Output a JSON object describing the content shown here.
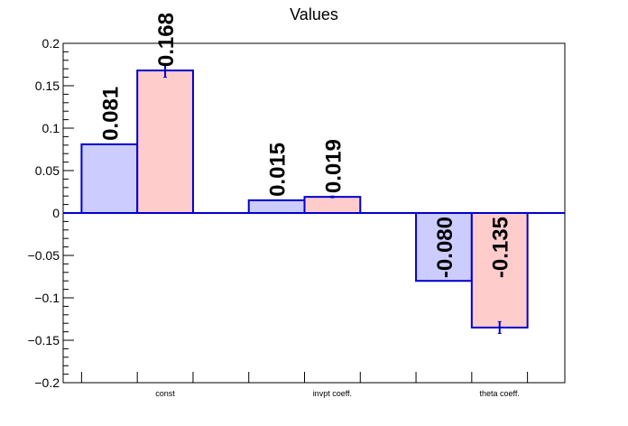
{
  "chart_data": {
    "type": "bar",
    "title": "Values",
    "xlabel": "",
    "ylabel": "",
    "categories": [
      "const",
      "invpt coeff.",
      "theta coeff."
    ],
    "ylim": [
      -0.2,
      0.2
    ],
    "yticks": [
      "0.2",
      "0.15",
      "0.1",
      "0.05",
      "0",
      "−0.05",
      "−0.1",
      "−0.15",
      "−0.2"
    ],
    "grid": false,
    "series": [
      {
        "values": [
          0.081,
          0.015,
          -0.08
        ],
        "labels": [
          "0.081",
          "0.015",
          "-0.080"
        ],
        "errors": [
          0,
          0,
          0
        ],
        "fill": "#ccccff",
        "edge": "#0000cc"
      },
      {
        "values": [
          0.168,
          0.019,
          -0.135
        ],
        "labels": [
          "0.168",
          "0.019",
          "-0.135"
        ],
        "errors": [
          0.008,
          0.001,
          0.007
        ],
        "fill": "#ffcccc",
        "edge": "#0000cc"
      }
    ],
    "axis_color": "#000000",
    "zero_line_color": "#0000cc"
  }
}
